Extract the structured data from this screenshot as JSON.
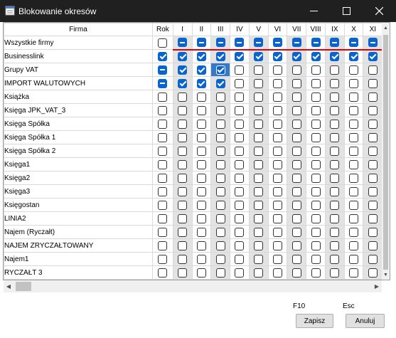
{
  "window": {
    "title": "Blokowanie okresów",
    "title_bar_color": "#202020",
    "icons": {
      "app": "app-icon",
      "minimize": "minimize-icon",
      "maximize": "maximize-icon",
      "close": "close-icon"
    }
  },
  "grid": {
    "columns": {
      "firma": "Firma",
      "rok": "Rok",
      "months": [
        "I",
        "II",
        "III",
        "IV",
        "V",
        "VI",
        "VII",
        "VIII",
        "IX",
        "X",
        "XI",
        ""
      ]
    },
    "accent_color": "#0a64cf",
    "lock_line_color": "#e00000",
    "rows": [
      {
        "name": "Wszystkie firmy",
        "rok": "unchecked",
        "months": [
          "partial",
          "partial",
          "partial",
          "partial",
          "partial",
          "partial",
          "partial",
          "partial",
          "partial",
          "partial",
          "partial",
          "partial"
        ]
      },
      {
        "name": "Businesslink",
        "rok": "checked",
        "months": [
          "checked",
          "checked",
          "checked",
          "checked",
          "checked",
          "checked",
          "checked",
          "checked",
          "checked",
          "checked",
          "checked",
          "checked"
        ]
      },
      {
        "name": "Grupy VAT",
        "rok": "partial",
        "months": [
          "checked",
          "checked",
          "checked",
          "unchecked",
          "unchecked",
          "unchecked",
          "unchecked",
          "unchecked",
          "unchecked",
          "unchecked",
          "unchecked",
          "unchecked"
        ]
      },
      {
        "name": "IMPORT WALUTOWYCH",
        "rok": "partial",
        "months": [
          "checked",
          "checked",
          "checked",
          "unchecked",
          "unchecked",
          "unchecked",
          "unchecked",
          "unchecked",
          "unchecked",
          "unchecked",
          "unchecked",
          "unchecked"
        ]
      },
      {
        "name": "Książka",
        "rok": "unchecked",
        "months": [
          "unchecked",
          "unchecked",
          "unchecked",
          "unchecked",
          "unchecked",
          "unchecked",
          "unchecked",
          "unchecked",
          "unchecked",
          "unchecked",
          "unchecked",
          "unchecked"
        ]
      },
      {
        "name": "Księga JPK_VAT_3",
        "rok": "unchecked",
        "months": [
          "unchecked",
          "unchecked",
          "unchecked",
          "unchecked",
          "unchecked",
          "unchecked",
          "unchecked",
          "unchecked",
          "unchecked",
          "unchecked",
          "unchecked",
          "unchecked"
        ]
      },
      {
        "name": "Księga Spółka",
        "rok": "unchecked",
        "months": [
          "unchecked",
          "unchecked",
          "unchecked",
          "unchecked",
          "unchecked",
          "unchecked",
          "unchecked",
          "unchecked",
          "unchecked",
          "unchecked",
          "unchecked",
          "unchecked"
        ]
      },
      {
        "name": "Księga Spółka 1",
        "rok": "unchecked",
        "months": [
          "unchecked",
          "unchecked",
          "unchecked",
          "unchecked",
          "unchecked",
          "unchecked",
          "unchecked",
          "unchecked",
          "unchecked",
          "unchecked",
          "unchecked",
          "unchecked"
        ]
      },
      {
        "name": "Księga Spółka 2",
        "rok": "unchecked",
        "months": [
          "unchecked",
          "unchecked",
          "unchecked",
          "unchecked",
          "unchecked",
          "unchecked",
          "unchecked",
          "unchecked",
          "unchecked",
          "unchecked",
          "unchecked",
          "unchecked"
        ]
      },
      {
        "name": "Księga1",
        "rok": "unchecked",
        "months": [
          "unchecked",
          "unchecked",
          "unchecked",
          "unchecked",
          "unchecked",
          "unchecked",
          "unchecked",
          "unchecked",
          "unchecked",
          "unchecked",
          "unchecked",
          "unchecked"
        ]
      },
      {
        "name": "Księga2",
        "rok": "unchecked",
        "months": [
          "unchecked",
          "unchecked",
          "unchecked",
          "unchecked",
          "unchecked",
          "unchecked",
          "unchecked",
          "unchecked",
          "unchecked",
          "unchecked",
          "unchecked",
          "unchecked"
        ]
      },
      {
        "name": "Księga3",
        "rok": "unchecked",
        "months": [
          "unchecked",
          "unchecked",
          "unchecked",
          "unchecked",
          "unchecked",
          "unchecked",
          "unchecked",
          "unchecked",
          "unchecked",
          "unchecked",
          "unchecked",
          "unchecked"
        ]
      },
      {
        "name": "Księgostan",
        "rok": "unchecked",
        "months": [
          "unchecked",
          "unchecked",
          "unchecked",
          "unchecked",
          "unchecked",
          "unchecked",
          "unchecked",
          "unchecked",
          "unchecked",
          "unchecked",
          "unchecked",
          "unchecked"
        ]
      },
      {
        "name": "LINIA2",
        "rok": "unchecked",
        "months": [
          "unchecked",
          "unchecked",
          "unchecked",
          "unchecked",
          "unchecked",
          "unchecked",
          "unchecked",
          "unchecked",
          "unchecked",
          "unchecked",
          "unchecked",
          "unchecked"
        ]
      },
      {
        "name": "Najem (Ryczałt)",
        "rok": "unchecked",
        "months": [
          "unchecked",
          "unchecked",
          "unchecked",
          "unchecked",
          "unchecked",
          "unchecked",
          "unchecked",
          "unchecked",
          "unchecked",
          "unchecked",
          "unchecked",
          "unchecked"
        ]
      },
      {
        "name": "NAJEM ZRYCZAŁTOWANY",
        "rok": "unchecked",
        "months": [
          "unchecked",
          "unchecked",
          "unchecked",
          "unchecked",
          "unchecked",
          "unchecked",
          "unchecked",
          "unchecked",
          "unchecked",
          "unchecked",
          "unchecked",
          "unchecked"
        ]
      },
      {
        "name": "Najem1",
        "rok": "unchecked",
        "months": [
          "unchecked",
          "unchecked",
          "unchecked",
          "unchecked",
          "unchecked",
          "unchecked",
          "unchecked",
          "unchecked",
          "unchecked",
          "unchecked",
          "unchecked",
          "unchecked"
        ]
      },
      {
        "name": "RYCZAŁT 3",
        "rok": "unchecked",
        "months": [
          "unchecked",
          "unchecked",
          "unchecked",
          "unchecked",
          "unchecked",
          "unchecked",
          "unchecked",
          "unchecked",
          "unchecked",
          "unchecked",
          "unchecked",
          "unchecked"
        ]
      },
      {
        "name": "",
        "rok": "unchecked",
        "months": [
          "unchecked",
          "unchecked",
          "unchecked",
          "unchecked",
          "unchecked",
          "unchecked",
          "unchecked",
          "unchecked",
          "unchecked",
          "unchecked",
          "unchecked",
          "unchecked"
        ]
      }
    ],
    "selected_cell": {
      "row": 2,
      "month": 2
    }
  },
  "scrollbars": {
    "vertical": {
      "up_icon": "arrow-up-icon",
      "down_icon": "arrow-down-icon"
    },
    "horizontal": {
      "left_icon": "arrow-left-icon",
      "right_icon": "arrow-right-icon"
    }
  },
  "footer": {
    "save_key": "F10",
    "cancel_key": "Esc",
    "save_label": "Zapisz",
    "cancel_label": "Anuluj"
  }
}
